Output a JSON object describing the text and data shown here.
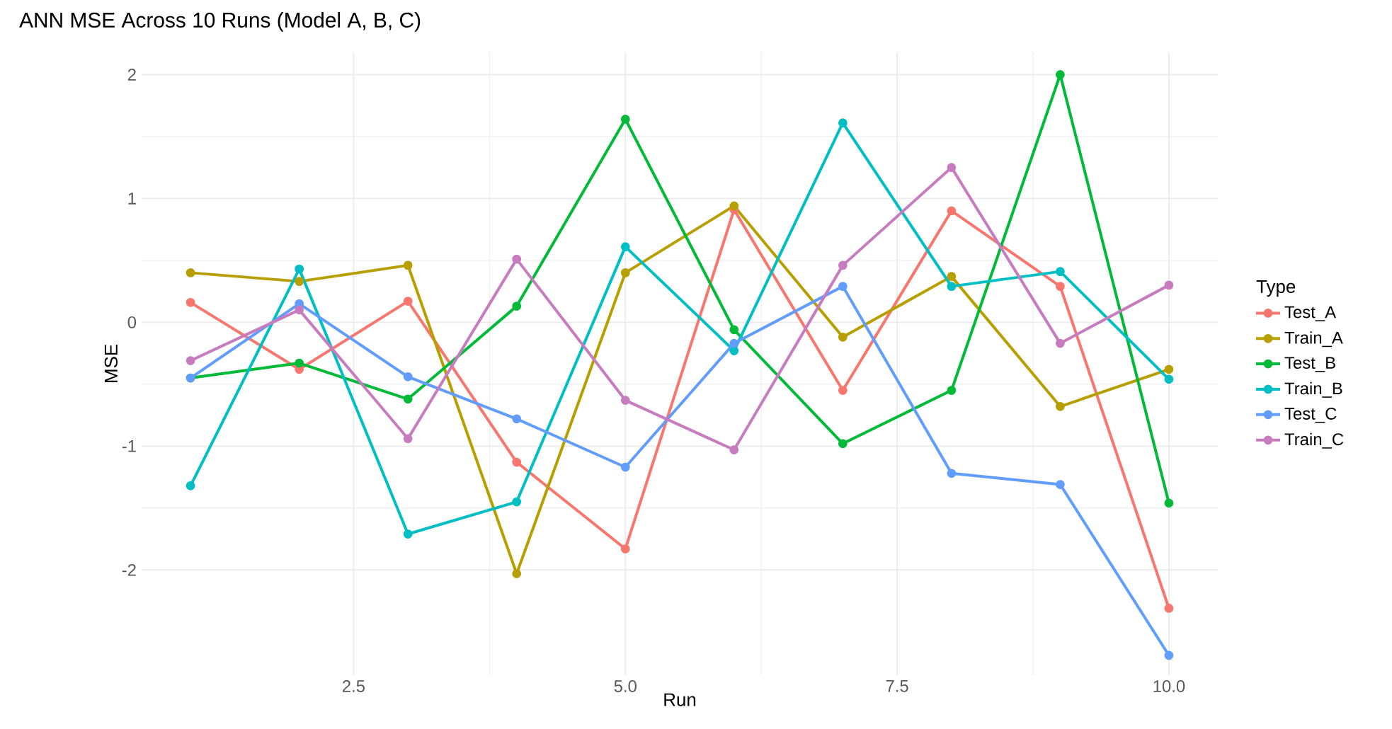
{
  "chart_data": {
    "type": "line",
    "title": "ANN MSE Across 10 Runs (Model A, B, C)",
    "xlabel": "Run",
    "ylabel": "MSE",
    "legend_title": "Type",
    "x": [
      1,
      2,
      3,
      4,
      5,
      6,
      7,
      8,
      9,
      10
    ],
    "series": [
      {
        "name": "Test_A",
        "color": "#f8766d",
        "values": [
          0.16,
          -0.38,
          0.17,
          -1.13,
          -1.83,
          0.91,
          -0.55,
          0.9,
          0.29,
          -2.31
        ]
      },
      {
        "name": "Train_A",
        "color": "#b79f00",
        "values": [
          0.4,
          0.33,
          0.46,
          -2.03,
          0.4,
          0.94,
          -0.12,
          0.37,
          -0.68,
          -0.38
        ]
      },
      {
        "name": "Test_B",
        "color": "#00ba38",
        "values": [
          -0.45,
          -0.33,
          -0.62,
          0.13,
          1.64,
          -0.06,
          -0.98,
          -0.55,
          2.0,
          -1.46
        ]
      },
      {
        "name": "Train_B",
        "color": "#00bfc4",
        "values": [
          -1.32,
          0.43,
          -1.71,
          -1.45,
          0.61,
          -0.23,
          1.61,
          0.29,
          0.41,
          -0.46
        ]
      },
      {
        "name": "Test_C",
        "color": "#619cff",
        "values": [
          -0.45,
          0.15,
          -0.44,
          -0.78,
          -1.17,
          -0.17,
          0.29,
          -1.22,
          -1.31,
          -2.69
        ]
      },
      {
        "name": "Train_C",
        "color": "#c77cbf",
        "values": [
          -0.31,
          0.1,
          -0.94,
          0.51,
          -0.63,
          -1.03,
          0.46,
          1.25,
          -0.17,
          0.3
        ]
      }
    ],
    "xlim": [
      0.55,
      10.45
    ],
    "ylim": [
      -2.85,
      2.18
    ],
    "xticks": [
      {
        "value": 2.5,
        "label": "2.5"
      },
      {
        "value": 5.0,
        "label": "5.0"
      },
      {
        "value": 7.5,
        "label": "7.5"
      },
      {
        "value": 10.0,
        "label": "10.0"
      }
    ],
    "yticks": [
      -2,
      -1,
      0,
      1,
      2
    ],
    "grid": true,
    "legend": "right",
    "marker": "circle",
    "line_style": "solid"
  }
}
